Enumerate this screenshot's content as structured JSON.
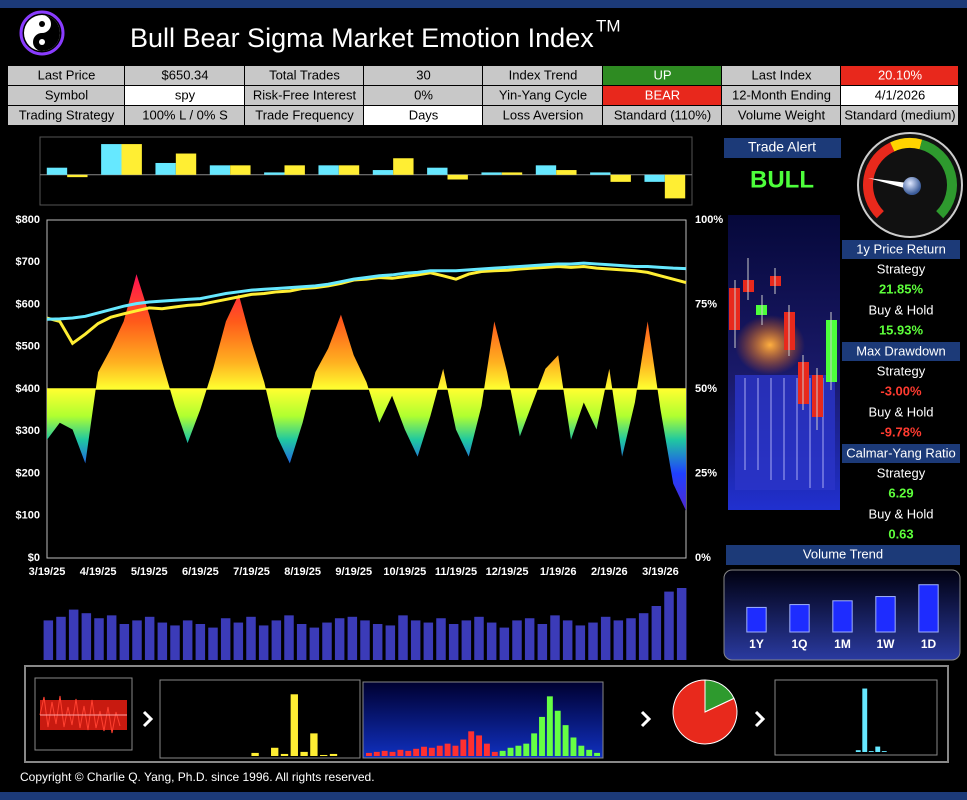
{
  "header": {
    "title": "Bull Bear Sigma Market Emotion Index",
    "tm": "TM"
  },
  "info_table": {
    "rows": [
      [
        "Last Price",
        "$650.34",
        "Total Trades",
        "30",
        "Index Trend",
        "UP",
        "Last Index",
        "20.10%"
      ],
      [
        "Symbol",
        "spy",
        "Risk-Free Interest",
        "0%",
        "Yin-Yang Cycle",
        "BEAR",
        "12-Month Ending",
        "4/1/2026"
      ],
      [
        "Trading Strategy",
        "100% L / 0% S",
        "Trade Frequency",
        "Days",
        "Loss Aversion",
        "Standard (110%)",
        "Volume Weight",
        "Standard (medium)"
      ]
    ]
  },
  "trade_alert": {
    "title": "Trade Alert",
    "signal": "BULL"
  },
  "stats": [
    {
      "title": "1y Price Return",
      "rows": [
        {
          "label": "Strategy",
          "value": "21.85%",
          "color": "#5dff3b"
        },
        {
          "label": "Buy & Hold",
          "value": "15.93%",
          "color": "#5dff3b"
        }
      ]
    },
    {
      "title": "Max Drawdown",
      "rows": [
        {
          "label": "Strategy",
          "value": "-3.00%",
          "color": "#ff3b30"
        },
        {
          "label": "Buy & Hold",
          "value": "-9.78%",
          "color": "#ff3b30"
        }
      ]
    },
    {
      "title": "Calmar-Yang Ratio",
      "rows": [
        {
          "label": "Strategy",
          "value": "6.29",
          "color": "#5dff3b"
        },
        {
          "label": "Buy & Hold",
          "value": "0.63",
          "color": "#5dff3b"
        }
      ]
    }
  ],
  "volume_trend_title": "Volume Trend",
  "footer": "Copyright © Charlie Q. Yang, Ph.D. since 1996.  All rights reserved.",
  "chart_data": [
    {
      "type": "line",
      "categories": [
        "3/19/25",
        null,
        null,
        null,
        "4/19/25",
        null,
        null,
        null,
        "5/19/25",
        null,
        null,
        null,
        "6/19/25",
        null,
        null,
        null,
        "7/19/25",
        null,
        null,
        null,
        "8/19/25",
        null,
        null,
        null,
        "9/19/25",
        null,
        null,
        null,
        "10/19/25",
        null,
        null,
        null,
        "11/19/25",
        null,
        null,
        null,
        "12/19/25",
        null,
        null,
        null,
        "1/19/26",
        null,
        null,
        null,
        "2/19/26",
        null,
        null,
        null,
        "3/19/26",
        null,
        null
      ],
      "ylim": [
        0,
        800
      ],
      "yticks": [
        {
          "value": 0,
          "label": "$0"
        },
        {
          "value": 100,
          "label": "$100"
        },
        {
          "value": 200,
          "label": "$200"
        },
        {
          "value": 300,
          "label": "$300"
        },
        {
          "value": 400,
          "label": "$400"
        },
        {
          "value": 500,
          "label": "$500"
        },
        {
          "value": 600,
          "label": "$600"
        },
        {
          "value": 700,
          "label": "$700"
        },
        {
          "value": 800,
          "label": "$800"
        }
      ],
      "y2lim": [
        0,
        100
      ],
      "y2ticks": [
        {
          "value": 0,
          "label": "0%"
        },
        {
          "value": 25,
          "label": "25%"
        },
        {
          "value": 50,
          "label": "50%"
        },
        {
          "value": 75,
          "label": "75%"
        },
        {
          "value": 100,
          "label": "100%"
        }
      ],
      "y2base": 50,
      "series": [
        {
          "axis": "y2",
          "area": true,
          "values": [
            35,
            40,
            38,
            28,
            55,
            62,
            70,
            84,
            72,
            58,
            45,
            34,
            44,
            56,
            70,
            78,
            64,
            52,
            36,
            28,
            40,
            55,
            62,
            72,
            60,
            52,
            40,
            48,
            38,
            30,
            42,
            56,
            38,
            30,
            45,
            70,
            55,
            36,
            46,
            56,
            60,
            35,
            46,
            38,
            56,
            30,
            46,
            70,
            44,
            22,
            14
          ]
        },
        {
          "color": "#ffee33",
          "values": [
            568,
            560,
            508,
            530,
            555,
            570,
            578,
            585,
            592,
            590,
            594,
            598,
            600,
            606,
            612,
            618,
            624,
            626,
            630,
            632,
            638,
            640,
            644,
            650,
            658,
            660,
            664,
            662,
            666,
            670,
            675,
            668,
            660,
            672,
            678,
            680,
            681,
            684,
            686,
            688,
            690,
            688,
            690,
            686,
            684,
            682,
            680,
            676,
            668,
            660,
            652
          ]
        },
        {
          "color": "#66e8ff",
          "values": [
            565,
            566,
            568,
            572,
            580,
            588,
            596,
            602,
            606,
            608,
            610,
            612,
            614,
            620,
            626,
            630,
            634,
            636,
            638,
            640,
            642,
            644,
            648,
            654,
            660,
            664,
            668,
            670,
            674,
            676,
            680,
            680,
            680,
            682,
            684,
            686,
            688,
            690,
            692,
            694,
            696,
            696,
            698,
            696,
            694,
            692,
            690,
            690,
            688,
            686,
            685
          ]
        }
      ]
    },
    {
      "type": "bar",
      "ylim": [
        -6.4,
        8
      ],
      "series": [
        {
          "color": "#66e8ff",
          "values": [
            1.5,
            6.5,
            2.5,
            2,
            0.5,
            2,
            1,
            1.5,
            0.5,
            2,
            0.5,
            -1.5
          ]
        },
        {
          "color": "#ffee33",
          "values": [
            -0.5,
            6.5,
            4.5,
            2,
            2,
            2,
            3.5,
            -1,
            0.5,
            1,
            -1.5,
            -5
          ]
        }
      ]
    },
    {
      "type": "bar",
      "ylim": [
        0,
        100
      ],
      "color": "#3b3bb8",
      "values": [
        55,
        60,
        70,
        65,
        58,
        62,
        50,
        55,
        60,
        52,
        48,
        55,
        50,
        45,
        58,
        52,
        60,
        48,
        55,
        62,
        50,
        45,
        52,
        58,
        60,
        55,
        50,
        48,
        62,
        55,
        52,
        58,
        50,
        55,
        60,
        52,
        45,
        55,
        58,
        50,
        62,
        55,
        48,
        52,
        60,
        55,
        58,
        65,
        75,
        95,
        100
      ]
    },
    {
      "type": "bar",
      "ylim": [
        0,
        110
      ],
      "color": "#1e2cff",
      "edge": "#9fb0ff",
      "categories": [
        "1Y",
        "1Q",
        "1M",
        "1W",
        "1D"
      ],
      "values": [
        52,
        58,
        66,
        75,
        100
      ]
    },
    {
      "type": "bar",
      "ylim": [
        0,
        70
      ],
      "color": "#ffee33",
      "values": [
        0,
        0,
        0,
        0,
        0,
        0,
        0,
        0,
        0,
        3,
        0,
        8,
        2,
        60,
        4,
        22,
        1,
        2,
        0,
        0
      ]
    },
    {
      "type": "bar",
      "ylim": [
        0,
        70
      ],
      "barmode": "overlay",
      "series": [
        {
          "color": "#ff3030",
          "values": [
            3,
            4,
            5,
            4,
            6,
            5,
            7,
            9,
            8,
            10,
            12,
            10,
            16,
            24,
            20,
            12,
            4,
            3,
            2,
            null,
            null,
            null,
            null,
            null,
            null,
            null,
            null,
            null,
            null,
            null
          ]
        },
        {
          "color": "#66ff44",
          "values": [
            null,
            null,
            null,
            null,
            null,
            null,
            null,
            null,
            null,
            null,
            null,
            null,
            null,
            null,
            null,
            null,
            null,
            5,
            8,
            10,
            12,
            22,
            38,
            58,
            44,
            30,
            18,
            10,
            6,
            3
          ]
        }
      ]
    },
    {
      "type": "bar",
      "ylim": [
        0,
        75
      ],
      "color": "#66e8ff",
      "values": [
        0,
        0,
        0,
        0,
        0,
        0,
        0,
        0,
        0,
        0,
        0,
        0,
        2,
        70,
        1,
        6,
        1,
        0,
        0,
        0,
        0,
        0,
        0,
        0
      ]
    },
    {
      "type": "pie",
      "values": [
        18,
        82
      ],
      "colors": [
        "#2e9a2e",
        "#e8291c"
      ]
    }
  ]
}
